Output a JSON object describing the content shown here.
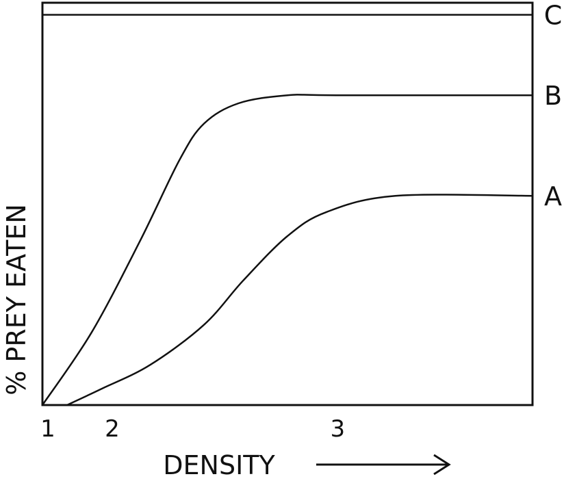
{
  "chart_data": {
    "type": "line",
    "ylabel": "% PREY EATEN",
    "xlabel": "DENSITY",
    "x_axis_arrow": "long-right-arrow",
    "x_ticks": [
      {
        "label": "1",
        "x": 0.0
      },
      {
        "label": "2",
        "x": 0.12
      },
      {
        "label": "3",
        "x": 0.58
      }
    ],
    "xlim": [
      0,
      1
    ],
    "ylim": [
      0,
      1
    ],
    "grid": false,
    "line_color": "#111111",
    "series": [
      {
        "name": "C",
        "points": [
          [
            0.0,
            0.97
          ],
          [
            1.0,
            0.97
          ]
        ]
      },
      {
        "name": "B",
        "points": [
          [
            0.0,
            0.0
          ],
          [
            0.1,
            0.18
          ],
          [
            0.2,
            0.41
          ],
          [
            0.28,
            0.61
          ],
          [
            0.33,
            0.7
          ],
          [
            0.4,
            0.75
          ],
          [
            0.5,
            0.77
          ],
          [
            0.6,
            0.77
          ],
          [
            1.0,
            0.77
          ]
        ]
      },
      {
        "name": "A",
        "points": [
          [
            0.05,
            0.0
          ],
          [
            0.12,
            0.04
          ],
          [
            0.22,
            0.1
          ],
          [
            0.33,
            0.2
          ],
          [
            0.41,
            0.31
          ],
          [
            0.5,
            0.42
          ],
          [
            0.58,
            0.48
          ],
          [
            0.72,
            0.52
          ],
          [
            1.0,
            0.52
          ]
        ]
      }
    ]
  }
}
